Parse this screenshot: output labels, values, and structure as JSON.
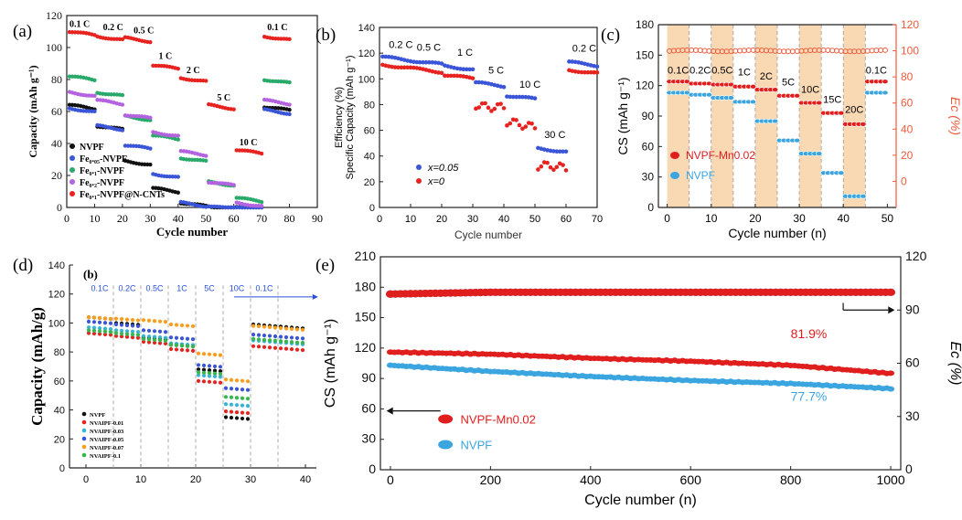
{
  "colors": {
    "black": "#111111",
    "red": "#e8231f",
    "blue": "#3a55d8",
    "green": "#2aaa6a",
    "purple": "#b463e0",
    "cyan": "#36b4d8",
    "orange": "#ff9c1a",
    "lime": "#33b84a",
    "ec_red": "#ef5a3c",
    "band": "#f9d9b4",
    "cs_red": "#e01e1e",
    "cs_blue": "#3ba5e0"
  },
  "chart_data": [
    {
      "panel": "(a)",
      "type": "scatter",
      "xlabel": "Cycle number",
      "ylabel": "Capacity (mAh g⁻¹)",
      "xlim": [
        0,
        90
      ],
      "ylim": [
        0,
        120
      ],
      "xticks": [
        0,
        10,
        20,
        30,
        40,
        50,
        60,
        70,
        80,
        90
      ],
      "yticks": [
        0,
        20,
        40,
        60,
        80,
        100,
        120
      ],
      "segments": [
        [
          1,
          10
        ],
        [
          11,
          20
        ],
        [
          21,
          30
        ],
        [
          31,
          40
        ],
        [
          41,
          50
        ],
        [
          51,
          60
        ],
        [
          61,
          70
        ],
        [
          71,
          80
        ]
      ],
      "rate_labels": [
        {
          "text": "0.1 C",
          "x": 1,
          "y": 113
        },
        {
          "text": "0.2 C",
          "x": 13,
          "y": 111
        },
        {
          "text": "0.5 C",
          "x": 24,
          "y": 109
        },
        {
          "text": "1 C",
          "x": 33,
          "y": 93
        },
        {
          "text": "2 C",
          "x": 43,
          "y": 84
        },
        {
          "text": "5 C",
          "x": 54,
          "y": 67
        },
        {
          "text": "10 C",
          "x": 62,
          "y": 39
        },
        {
          "text": "0.1 C",
          "x": 72,
          "y": 111
        }
      ],
      "legend": [
        "NVPF",
        "Fe₀.₀₅-NVPF",
        "Fe₀.₁-NVPF",
        "Fe₀.₂-NVPF",
        "Fe₀.₁-NVPF@N-CNTs"
      ],
      "series": [
        {
          "name": "NVPF",
          "color_key": "black",
          "values": [
            64,
            51,
            29,
            12,
            3,
            0.5,
            0,
            63
          ]
        },
        {
          "name": "Fe₀.₀₅-NVPF",
          "color_key": "blue",
          "values": [
            62,
            51,
            39,
            21,
            3,
            1,
            0,
            61
          ]
        },
        {
          "name": "Fe₀.₁-NVPF",
          "color_key": "green",
          "values": [
            82,
            72,
            57,
            45,
            31,
            16,
            6,
            80
          ]
        },
        {
          "name": "Fe₀.₂-NVPF",
          "color_key": "purple",
          "values": [
            72,
            67,
            58,
            47,
            35,
            16,
            3,
            67
          ]
        },
        {
          "name": "Fe₀.₁-NVPF@N-CNTs",
          "color_key": "red",
          "values": [
            110,
            107,
            106,
            89,
            81,
            64,
            36,
            107
          ]
        }
      ]
    },
    {
      "panel": "(b)",
      "type": "scatter",
      "xlabel": "Cycle number",
      "ylabel_top": "Efficiency (%)",
      "ylabel_bottom": "Specific Capacity (mAh g⁻¹)",
      "xlim": [
        0,
        70
      ],
      "ylim": [
        0,
        140
      ],
      "xticks": [
        0,
        10,
        20,
        30,
        40,
        50,
        60,
        70
      ],
      "yticks": [
        0,
        20,
        40,
        60,
        80,
        100,
        120,
        140
      ],
      "segments": [
        [
          1,
          10
        ],
        [
          11,
          20
        ],
        [
          21,
          30
        ],
        [
          31,
          40
        ],
        [
          41,
          50
        ],
        [
          51,
          60
        ],
        [
          61,
          70
        ]
      ],
      "rate_labels": [
        {
          "text": "0.2 C",
          "x": 3,
          "y": 124
        },
        {
          "text": "0.5 C",
          "x": 12,
          "y": 122
        },
        {
          "text": "1 C",
          "x": 25,
          "y": 118
        },
        {
          "text": "5 C",
          "x": 35,
          "y": 104
        },
        {
          "text": "10 C",
          "x": 45,
          "y": 93
        },
        {
          "text": "30 C",
          "x": 53,
          "y": 54
        },
        {
          "text": "0.2 C",
          "x": 62,
          "y": 121
        }
      ],
      "legend": [
        "x=0.05",
        "x=0"
      ],
      "series": [
        {
          "name": "x=0.05",
          "color_key": "blue",
          "values": [
            117,
            114,
            110,
            97,
            87,
            46,
            113
          ]
        },
        {
          "name": "x=0",
          "color_key": "red",
          "values": [
            111,
            108,
            103,
            80,
            66,
            33,
            107
          ]
        }
      ]
    },
    {
      "panel": "(c)",
      "type": "scatter",
      "xlabel": "Cycle number (n)",
      "ylabel_left": "CS (mAh g⁻¹)",
      "ylabel_right": "Ec (%)",
      "xlim": [
        -2,
        52
      ],
      "ylim_left": [
        0,
        180
      ],
      "ylim_right": [
        -20,
        120
      ],
      "xticks": [
        0,
        10,
        20,
        30,
        40,
        50
      ],
      "yticks_left": [
        0,
        30,
        60,
        90,
        120,
        150,
        180
      ],
      "yticks_right": [
        0,
        20,
        40,
        60,
        80,
        100,
        120
      ],
      "band_segments": [
        [
          0,
          5
        ],
        [
          10,
          15
        ],
        [
          20,
          25
        ],
        [
          30,
          35
        ],
        [
          40,
          45
        ]
      ],
      "rate_labels": [
        "0.1C",
        "0.2C",
        "0.5C",
        "1C",
        "2C",
        "5C",
        "10C",
        "15C",
        "20C",
        "0.1C"
      ],
      "legend": [
        "NVPF-Mn0.02",
        "NVPF"
      ],
      "series": [
        {
          "name": "NVPF-Mn0.02",
          "color_key": "cs_red",
          "values": [
            124,
            122,
            121,
            119,
            116,
            110,
            103,
            93,
            82,
            124
          ]
        },
        {
          "name": "NVPF",
          "color_key": "cs_blue",
          "values": [
            113,
            111,
            108,
            104,
            85,
            66,
            53,
            34,
            11,
            113
          ]
        },
        {
          "name": "Ec",
          "color_key": "ec_red",
          "values": [
            100,
            100,
            100,
            100,
            100,
            100,
            100,
            100,
            100,
            100
          ]
        }
      ]
    },
    {
      "panel": "(d)",
      "type": "scatter",
      "inner_label": "(b)",
      "ylabel": "Capacity (mAh/g)",
      "xlim": [
        -3,
        42
      ],
      "ylim": [
        0,
        140
      ],
      "xticks": [
        0,
        10,
        20,
        30,
        40
      ],
      "yticks": [
        0,
        20,
        40,
        60,
        80,
        100,
        120,
        140
      ],
      "rate_labels": [
        "0.1C",
        "0.2C",
        "0.5C",
        "1C",
        "5C",
        "10C",
        "0.1C"
      ],
      "legend": [
        "NVPF",
        "NVAIPF-0.01",
        "NVAIPF-0.03",
        "NVAIPF-0.05",
        "NVAIPF-0.07",
        "NVAIPF-0.1"
      ],
      "series": [
        {
          "name": "NVPF",
          "color_key": "black",
          "values": [
            104,
            100,
            90,
            85,
            68,
            35,
            99
          ]
        },
        {
          "name": "NVAIPF-0.01",
          "color_key": "red",
          "values": [
            93,
            91,
            87,
            82,
            60,
            39,
            84
          ]
        },
        {
          "name": "NVAIPF-0.03",
          "color_key": "cyan",
          "values": [
            97,
            95,
            91,
            86,
            64,
            44,
            88
          ]
        },
        {
          "name": "NVAIPF-0.05",
          "color_key": "blue",
          "values": [
            101,
            99,
            95,
            90,
            71,
            55,
            92
          ]
        },
        {
          "name": "NVAIPF-0.07",
          "color_key": "orange",
          "values": [
            104,
            103,
            102,
            99,
            79,
            61,
            98
          ]
        },
        {
          "name": "NVAIPF-0.1",
          "color_key": "lime",
          "values": [
            95,
            93,
            89,
            85,
            66,
            49,
            89
          ]
        }
      ]
    },
    {
      "panel": "(e)",
      "type": "scatter",
      "xlabel": "Cycle number (n)",
      "ylabel_left": "CS (mAh g⁻¹)",
      "ylabel_right": "Ec (%)",
      "xlim": [
        -20,
        1020
      ],
      "ylim_left": [
        0,
        210
      ],
      "ylim_right": [
        0,
        120
      ],
      "xticks": [
        0,
        200,
        400,
        600,
        800,
        1000
      ],
      "yticks_left": [
        0,
        30,
        60,
        90,
        120,
        150,
        180,
        210
      ],
      "yticks_right": [
        0,
        30,
        60,
        90,
        120
      ],
      "annotations": [
        "81.9%",
        "77.7%"
      ],
      "legend": [
        "NVPF-Mn0.02",
        "NVPF"
      ],
      "series": [
        {
          "name": "NVPF-Mn0.02",
          "color_key": "cs_red",
          "x": [
            0,
            200,
            400,
            600,
            800,
            1000
          ],
          "values": [
            116,
            114,
            110,
            107,
            103,
            95
          ]
        },
        {
          "name": "NVPF",
          "color_key": "cs_blue",
          "x": [
            0,
            200,
            400,
            600,
            800,
            1000
          ],
          "values": [
            103,
            97,
            92,
            88,
            85,
            80
          ]
        },
        {
          "name": "Ec NVPF-Mn0.02",
          "color_key": "cs_red",
          "x": [
            0,
            200,
            400,
            600,
            800,
            1000
          ],
          "values": [
            99,
            100,
            100,
            100,
            100,
            100
          ]
        },
        {
          "name": "Ec NVPF",
          "color_key": "cs_blue",
          "x": [
            0,
            200,
            400,
            600,
            800,
            1000
          ],
          "values": [
            99,
            100,
            100,
            100,
            100,
            100
          ]
        }
      ]
    }
  ]
}
